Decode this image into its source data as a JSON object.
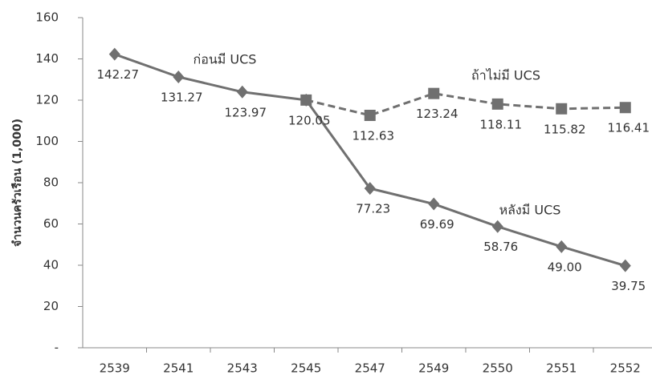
{
  "chart_data": {
    "type": "line",
    "y_label": "จำนวนครัวเรือน (1,000)",
    "categories": [
      "2539",
      "2541",
      "2543",
      "2545",
      "2547",
      "2549",
      "2550",
      "2551",
      "2552"
    ],
    "series": [
      {
        "color": "#707070",
        "dash": false,
        "marker": "diamond",
        "values": [
          142.27,
          131.27,
          123.97,
          120.05,
          77.23,
          69.69,
          58.76,
          49.0,
          39.75
        ],
        "value_labels": [
          "142.27",
          "131.27",
          "123.97",
          "120.05",
          "77.23",
          "69.69",
          "58.76",
          "49.00",
          "39.75"
        ]
      },
      {
        "color": "#707070",
        "dash": true,
        "marker": "square",
        "values": [
          null,
          null,
          null,
          120.05,
          112.63,
          123.24,
          118.11,
          115.82,
          116.41
        ],
        "value_labels": [
          null,
          null,
          null,
          null,
          "112.63",
          "123.24",
          "118.11",
          "115.82",
          "116.41"
        ]
      }
    ],
    "annotations": [
      "ก่อนมี UCS",
      "ถ้าไม่มี UCS",
      "หลังมี UCS"
    ],
    "ylim": [
      0,
      160
    ],
    "yticks": [
      {
        "value": 0,
        "label": "-"
      },
      20,
      40,
      60,
      80,
      100,
      120,
      140,
      160
    ],
    "grid": false
  }
}
